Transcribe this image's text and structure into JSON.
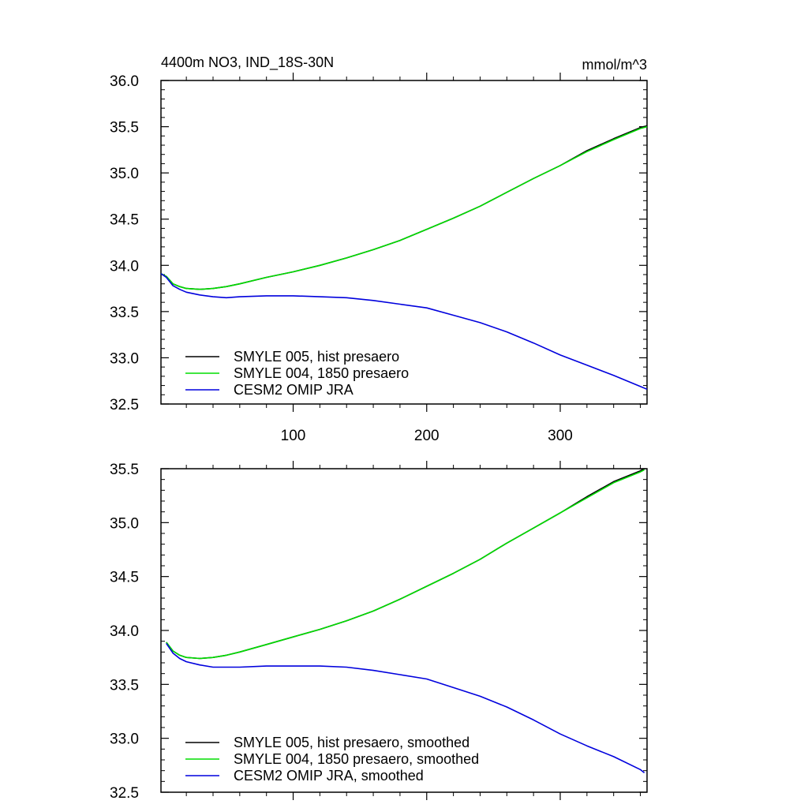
{
  "colors": {
    "background": "#ffffff",
    "axis": "#000000",
    "hist": "#000000",
    "n1850": "#00dd00",
    "omip": "#0000dd"
  },
  "chart_data": [
    {
      "type": "line",
      "title": "4400m NO3, IND_18S-30N",
      "units": "mmol/m^3",
      "xlim": [
        1,
        365
      ],
      "ylim": [
        32.5,
        36.0
      ],
      "x_ticks": [
        100,
        200,
        300
      ],
      "x_tick_labels": [
        "100",
        "200",
        "300"
      ],
      "y_ticks": [
        32.5,
        33.0,
        33.5,
        34.0,
        34.5,
        35.0,
        35.5,
        36.0
      ],
      "y_tick_labels": [
        "32.5",
        "33.0",
        "33.5",
        "34.0",
        "34.5",
        "35.0",
        "35.5",
        "36.0"
      ],
      "legend_position": "bottom-left",
      "series": [
        {
          "name": "SMYLE 005, hist presaero",
          "color": "#000000",
          "x": [
            1,
            5,
            10,
            15,
            20,
            30,
            40,
            50,
            60,
            80,
            100,
            120,
            140,
            160,
            180,
            200,
            220,
            240,
            260,
            280,
            300,
            320,
            340,
            360,
            365
          ],
          "y": [
            33.91,
            33.88,
            33.8,
            33.77,
            33.75,
            33.74,
            33.75,
            33.77,
            33.8,
            33.87,
            33.93,
            34.0,
            34.08,
            34.17,
            34.27,
            34.39,
            34.51,
            34.64,
            34.79,
            34.94,
            35.08,
            35.24,
            35.37,
            35.49,
            35.51
          ]
        },
        {
          "name": "SMYLE 004, 1850 presaero",
          "color": "#00dd00",
          "x": [
            1,
            5,
            10,
            15,
            20,
            30,
            40,
            50,
            60,
            80,
            100,
            120,
            140,
            160,
            180,
            200,
            220,
            240,
            260,
            280,
            300,
            320,
            340,
            360,
            365
          ],
          "y": [
            33.91,
            33.88,
            33.8,
            33.77,
            33.75,
            33.74,
            33.75,
            33.77,
            33.8,
            33.87,
            33.93,
            34.0,
            34.08,
            34.17,
            34.27,
            34.39,
            34.51,
            34.64,
            34.79,
            34.94,
            35.08,
            35.23,
            35.36,
            35.48,
            35.5
          ]
        },
        {
          "name": "CESM2 OMIP JRA",
          "color": "#0000dd",
          "x": [
            1,
            5,
            10,
            15,
            20,
            30,
            40,
            50,
            60,
            80,
            100,
            120,
            140,
            160,
            180,
            200,
            220,
            240,
            260,
            280,
            300,
            320,
            340,
            360,
            365
          ],
          "y": [
            33.91,
            33.87,
            33.78,
            33.74,
            33.71,
            33.68,
            33.66,
            33.65,
            33.66,
            33.67,
            33.67,
            33.66,
            33.65,
            33.62,
            33.58,
            33.54,
            33.46,
            33.38,
            33.28,
            33.16,
            33.03,
            32.92,
            32.81,
            32.69,
            32.66
          ]
        }
      ]
    },
    {
      "type": "line",
      "title": "",
      "units": "",
      "xlim": [
        1,
        365
      ],
      "ylim": [
        32.5,
        35.5
      ],
      "x_ticks": [
        100,
        200,
        300
      ],
      "x_tick_labels": [],
      "y_ticks": [
        32.5,
        33.0,
        33.5,
        34.0,
        34.5,
        35.0,
        35.5
      ],
      "y_tick_labels": [
        "32.5",
        "33.0",
        "33.5",
        "34.0",
        "34.5",
        "35.0",
        "35.5"
      ],
      "legend_position": "bottom-left",
      "series": [
        {
          "name": "SMYLE 005, hist presaero, smoothed",
          "color": "#000000",
          "x": [
            5,
            10,
            15,
            20,
            30,
            40,
            50,
            60,
            80,
            100,
            120,
            140,
            160,
            180,
            200,
            220,
            240,
            260,
            280,
            300,
            320,
            340,
            360,
            363
          ],
          "y": [
            33.89,
            33.81,
            33.77,
            33.75,
            33.74,
            33.75,
            33.77,
            33.8,
            33.87,
            33.94,
            34.01,
            34.09,
            34.18,
            34.29,
            34.41,
            34.53,
            34.66,
            34.81,
            34.95,
            35.09,
            35.24,
            35.38,
            35.48,
            35.5
          ]
        },
        {
          "name": "SMYLE 004, 1850 presaero, smoothed",
          "color": "#00dd00",
          "x": [
            5,
            10,
            15,
            20,
            30,
            40,
            50,
            60,
            80,
            100,
            120,
            140,
            160,
            180,
            200,
            220,
            240,
            260,
            280,
            300,
            320,
            340,
            360,
            363
          ],
          "y": [
            33.89,
            33.81,
            33.77,
            33.75,
            33.74,
            33.75,
            33.77,
            33.8,
            33.87,
            33.94,
            34.01,
            34.09,
            34.18,
            34.29,
            34.41,
            34.53,
            34.66,
            34.81,
            34.95,
            35.09,
            35.23,
            35.37,
            35.47,
            35.49
          ]
        },
        {
          "name": "CESM2 OMIP JRA, smoothed",
          "color": "#0000dd",
          "x": [
            5,
            10,
            15,
            20,
            30,
            40,
            50,
            60,
            80,
            100,
            120,
            140,
            160,
            180,
            200,
            220,
            240,
            260,
            280,
            300,
            320,
            340,
            360,
            363
          ],
          "y": [
            33.88,
            33.79,
            33.74,
            33.71,
            33.68,
            33.66,
            33.66,
            33.66,
            33.67,
            33.67,
            33.67,
            33.66,
            33.63,
            33.59,
            33.55,
            33.47,
            33.39,
            33.29,
            33.17,
            33.04,
            32.93,
            32.83,
            32.71,
            32.68
          ]
        }
      ]
    }
  ]
}
